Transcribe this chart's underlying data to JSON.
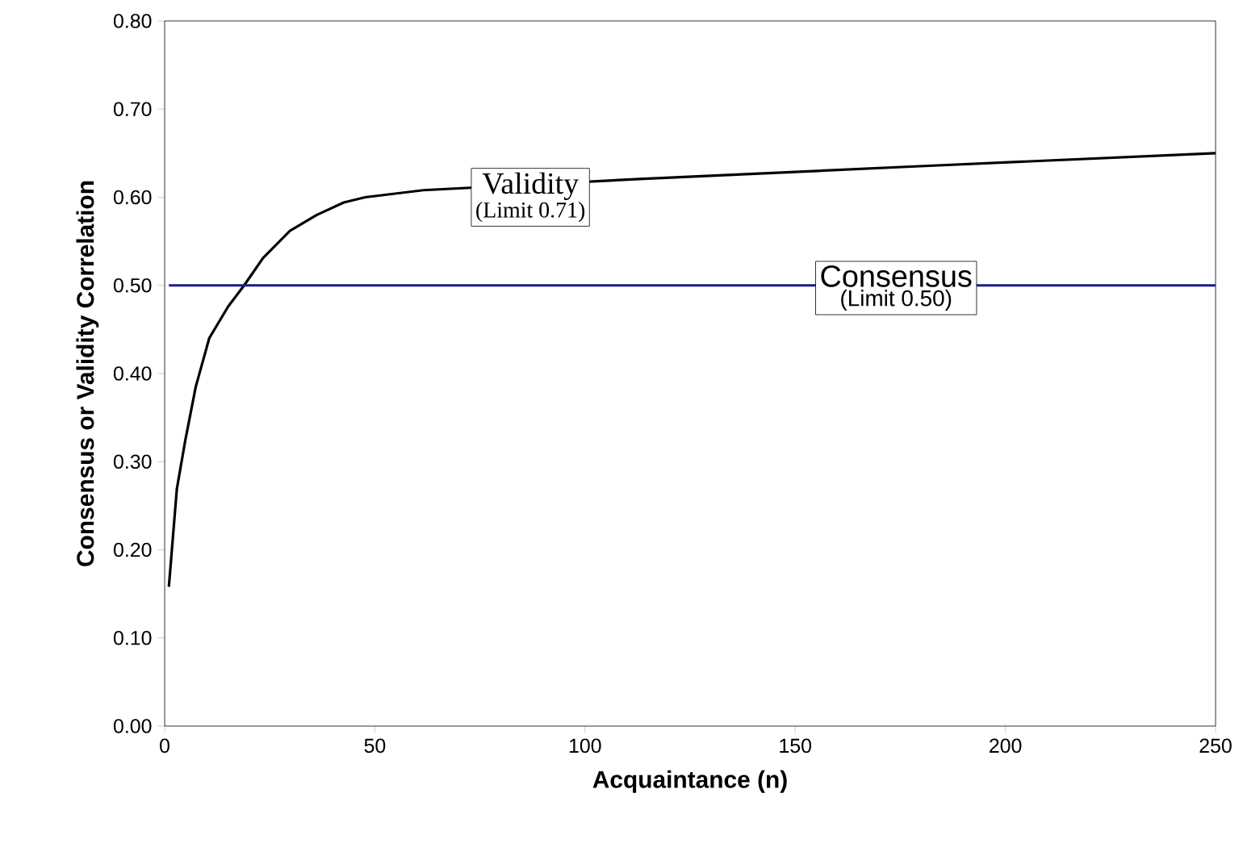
{
  "chart_data": {
    "type": "line",
    "xlabel": "Acquaintance (n)",
    "ylabel": "Consensus or Validity Correlation",
    "series": [
      {
        "name": "Validity",
        "color": "#000000",
        "x": [
          1,
          2.9,
          4.9,
          7.4,
          10.6,
          15.1,
          18.9,
          23.4,
          29.8,
          36.2,
          42.6,
          47.7,
          61.5,
          114,
          178.6,
          250
        ],
        "values": [
          0.158,
          0.269,
          0.324,
          0.385,
          0.44,
          0.476,
          0.5,
          0.531,
          0.562,
          0.58,
          0.594,
          0.6,
          0.608,
          0.621,
          0.635,
          0.65
        ]
      },
      {
        "name": "Consensus",
        "color": "#1a1a8c",
        "x": [
          1,
          250
        ],
        "values": [
          0.5,
          0.5
        ]
      }
    ],
    "annotations": [
      "(Limit 0.71)",
      "(Limit 0.50)"
    ],
    "xlim": [
      0,
      250
    ],
    "xticks": [
      0,
      50,
      100,
      150,
      200,
      250
    ],
    "ylim": [
      0,
      0.8
    ],
    "yticks": [
      {
        "value": 0,
        "label": "0.00"
      },
      {
        "value": 0.1,
        "label": "0.10"
      },
      {
        "value": 0.2,
        "label": "0.20"
      },
      {
        "value": 0.3,
        "label": "0.30"
      },
      {
        "value": 0.4,
        "label": "0.40"
      },
      {
        "value": 0.5,
        "label": "0.50"
      },
      {
        "value": 0.6,
        "label": "0.60"
      },
      {
        "value": 0.7,
        "label": "0.70"
      },
      {
        "value": 0.8,
        "label": "0.80"
      }
    ],
    "grid": false,
    "marker": "none",
    "line_style": "solid"
  }
}
